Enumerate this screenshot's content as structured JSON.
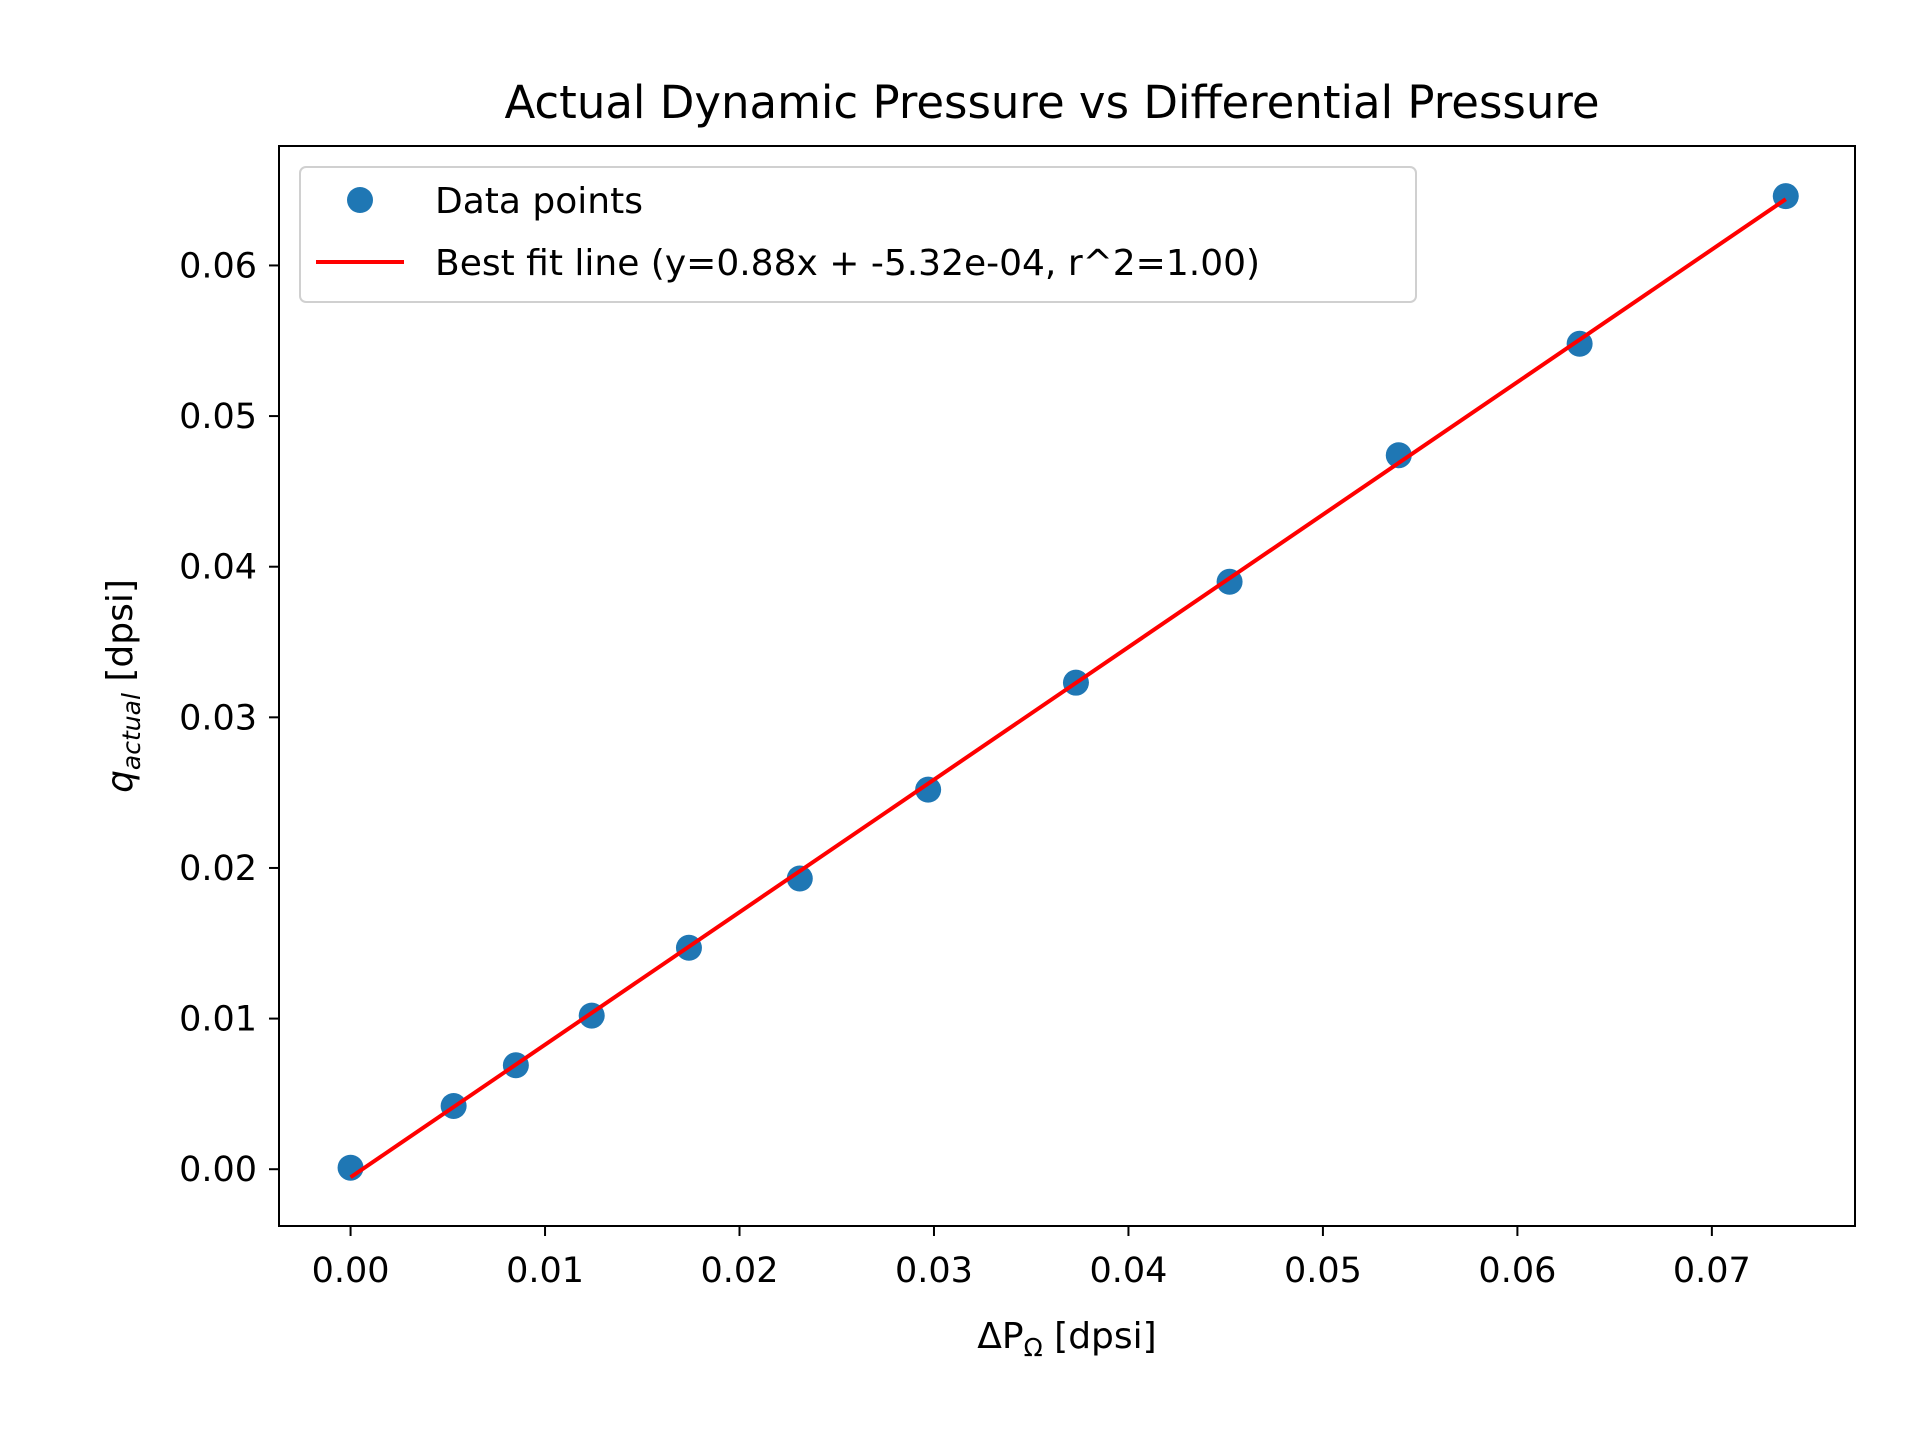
{
  "chart_data": {
    "type": "scatter",
    "title": "Actual Dynamic Pressure vs Differential Pressure",
    "xlabel": {
      "prefix": "ΔP",
      "subscript": "Ω",
      "suffix": " [dpsi]"
    },
    "ylabel": {
      "prefix": "q",
      "subscript": "actual",
      "suffix": " [dpsi]"
    },
    "xlim": [
      -0.00368,
      0.07736
    ],
    "ylim": [
      -0.00377,
      0.06793
    ],
    "x_ticks": [
      "0.00",
      "0.01",
      "0.02",
      "0.03",
      "0.04",
      "0.05",
      "0.06",
      "0.07"
    ],
    "x_tick_values": [
      0,
      0.01,
      0.02,
      0.03,
      0.04,
      0.05,
      0.06,
      0.07
    ],
    "y_ticks": [
      "0.00",
      "0.01",
      "0.02",
      "0.03",
      "0.04",
      "0.05",
      "0.06"
    ],
    "y_tick_values": [
      0,
      0.01,
      0.02,
      0.03,
      0.04,
      0.05,
      0.06
    ],
    "grid": false,
    "legend_position": "top-left",
    "series": [
      {
        "name": "Data points",
        "kind": "scatter",
        "color": "#1f77b4",
        "x": [
          0.0,
          0.0053,
          0.0085,
          0.0124,
          0.0174,
          0.0231,
          0.0297,
          0.0373,
          0.0452,
          0.0539,
          0.0632,
          0.0738
        ],
        "y": [
          0.0001,
          0.0042,
          0.0069,
          0.0102,
          0.0147,
          0.0193,
          0.0252,
          0.0323,
          0.039,
          0.0474,
          0.0548,
          0.0646
        ]
      },
      {
        "name": "Best fit line (y=0.88x + -5.32e-04, r^2=1.00)",
        "kind": "line",
        "color": "#ff0000",
        "x": [
          0.0,
          0.0738
        ],
        "y": [
          -0.000532,
          0.0644
        ]
      }
    ]
  }
}
